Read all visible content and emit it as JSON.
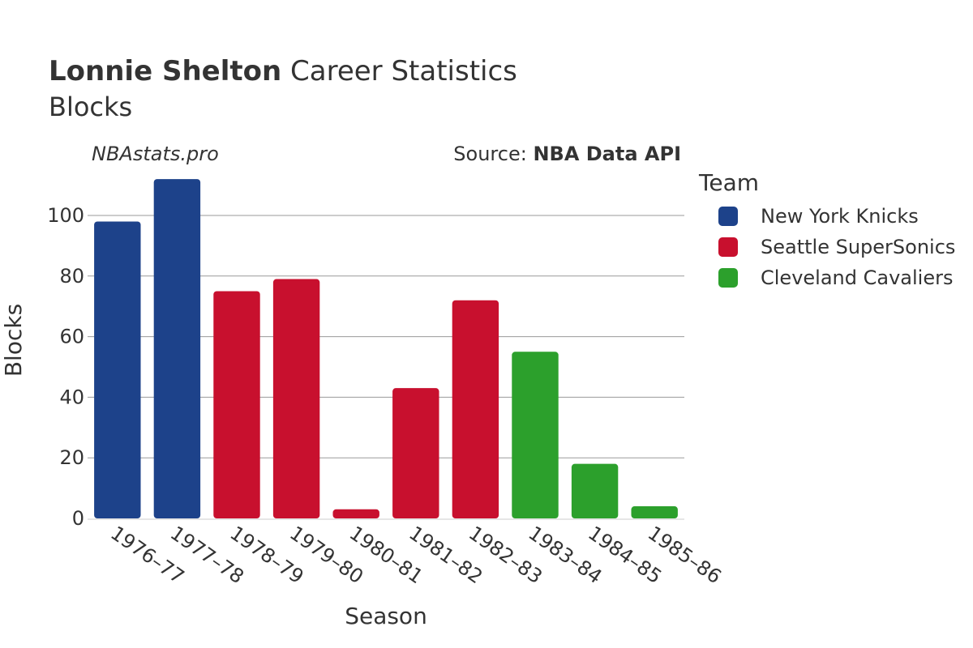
{
  "header": {
    "player": "Lonnie Shelton",
    "title_rest": "Career Statistics",
    "subtitle": "Blocks",
    "watermark": "NBAstats.pro",
    "source_label": "Source:",
    "source_name": "NBA Data API"
  },
  "legend": {
    "title": "Team",
    "items": [
      {
        "label": "New York Knicks",
        "color": "#1d428a"
      },
      {
        "label": "Seattle SuperSonics",
        "color": "#c8102e"
      },
      {
        "label": "Cleveland Cavaliers",
        "color": "#2ca02c"
      }
    ]
  },
  "chart_data": {
    "type": "bar",
    "title": "Lonnie Shelton Career Statistics",
    "subtitle": "Blocks",
    "xlabel": "Season",
    "ylabel": "Blocks",
    "ylim": [
      0,
      118
    ],
    "yticks": [
      0,
      20,
      40,
      60,
      80,
      100
    ],
    "grid": true,
    "legend_position": "right",
    "categories": [
      "1976–77",
      "1977–78",
      "1978–79",
      "1979–80",
      "1980–81",
      "1981–82",
      "1982–83",
      "1983–84",
      "1984–85",
      "1985–86"
    ],
    "values": [
      98,
      112,
      75,
      79,
      3,
      43,
      72,
      55,
      18,
      4
    ],
    "teams": [
      "New York Knicks",
      "New York Knicks",
      "Seattle SuperSonics",
      "Seattle SuperSonics",
      "Seattle SuperSonics",
      "Seattle SuperSonics",
      "Seattle SuperSonics",
      "Cleveland Cavaliers",
      "Cleveland Cavaliers",
      "Cleveland Cavaliers"
    ]
  }
}
